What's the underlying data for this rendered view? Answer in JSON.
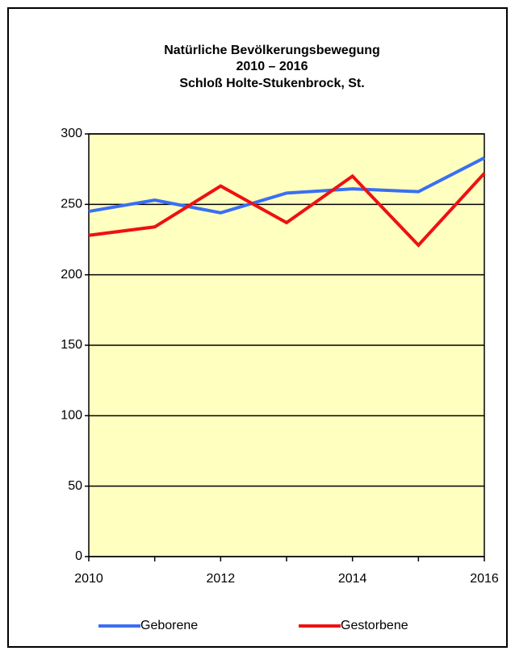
{
  "chart_data": {
    "type": "line",
    "title": [
      "Natürliche Bevölkerungsbewegung",
      "2010 – 2016",
      "Schloß Holte-Stukenbrock, St."
    ],
    "x": [
      2010,
      2011,
      2012,
      2013,
      2014,
      2015,
      2016
    ],
    "series": [
      {
        "name": "Geborene",
        "color": "#3a6ff2",
        "values": [
          245,
          253,
          244,
          258,
          261,
          259,
          283
        ]
      },
      {
        "name": "Gestorbene",
        "color": "#ee1111",
        "values": [
          228,
          234,
          263,
          237,
          270,
          221,
          272
        ]
      }
    ],
    "xlim": [
      2010,
      2016
    ],
    "xticks": [
      2010,
      2012,
      2014,
      2016
    ],
    "ylim": [
      0,
      300
    ],
    "yticks": [
      0,
      50,
      100,
      150,
      200,
      250,
      300
    ],
    "grid": true,
    "plot_background": "#ffffc0",
    "legend": "bottom"
  }
}
